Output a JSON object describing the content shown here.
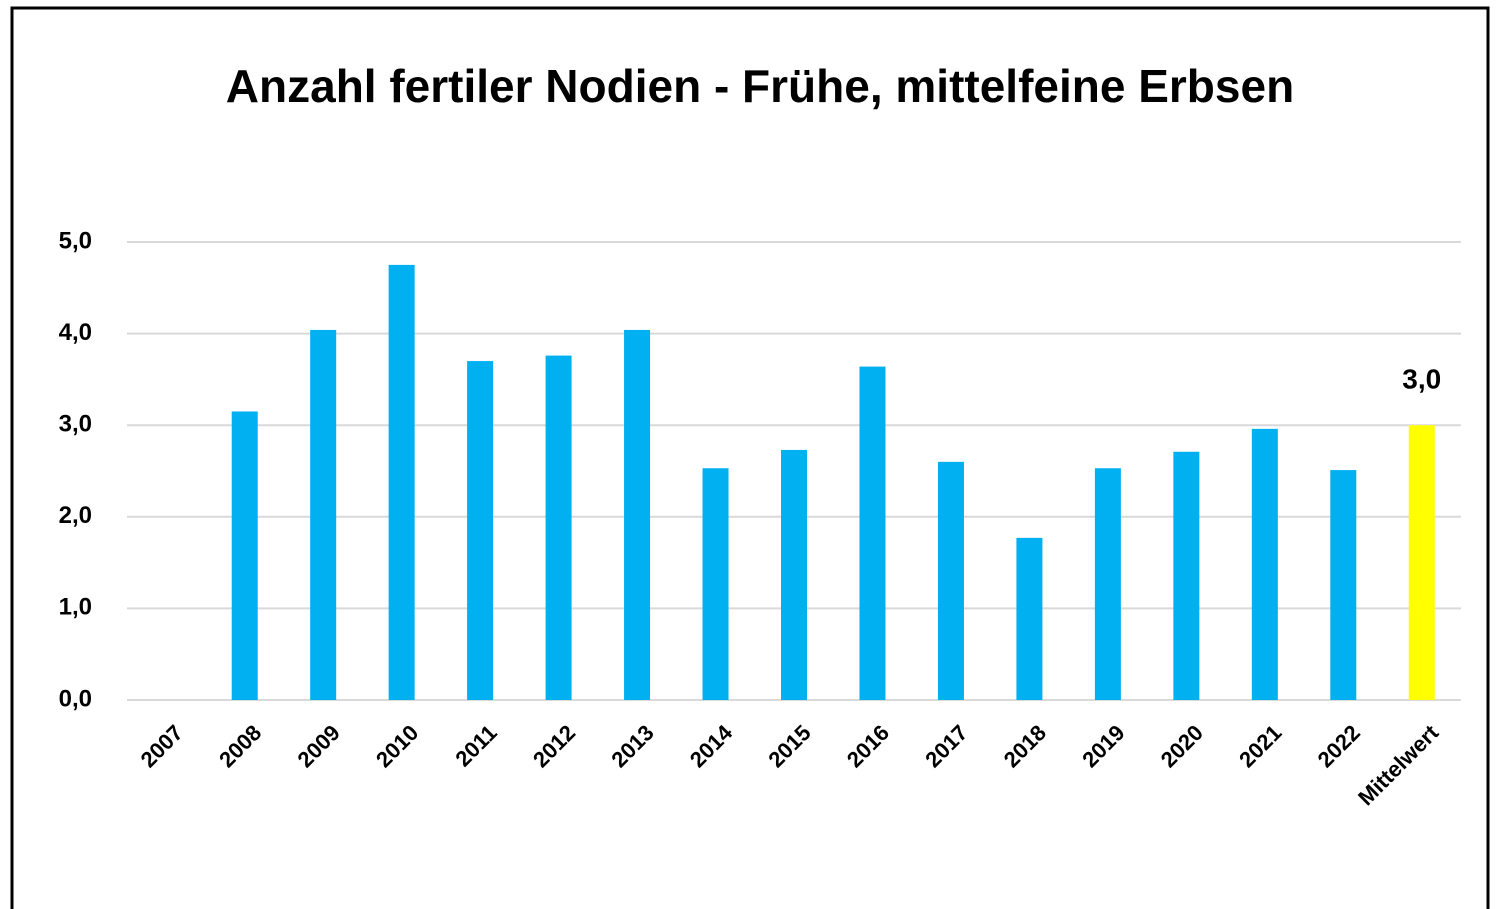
{
  "chart_data": {
    "type": "bar",
    "title": "Anzahl fertiler Nodien - Frühe, mittelfeine Erbsen",
    "categories": [
      "2007",
      "2008",
      "2009",
      "2010",
      "2011",
      "2012",
      "2013",
      "2014",
      "2015",
      "2016",
      "2017",
      "2018",
      "2019",
      "2020",
      "2021",
      "2022",
      "Mittelwert"
    ],
    "values": [
      null,
      3.15,
      4.04,
      4.75,
      3.7,
      3.76,
      4.04,
      2.53,
      2.73,
      3.64,
      2.6,
      1.77,
      2.53,
      2.71,
      2.96,
      2.51,
      3.0
    ],
    "value_labels": [
      null,
      null,
      null,
      null,
      null,
      null,
      null,
      null,
      null,
      null,
      null,
      null,
      null,
      null,
      null,
      null,
      "3,0"
    ],
    "colors": [
      "#00b0f0",
      "#00b0f0",
      "#00b0f0",
      "#00b0f0",
      "#00b0f0",
      "#00b0f0",
      "#00b0f0",
      "#00b0f0",
      "#00b0f0",
      "#00b0f0",
      "#00b0f0",
      "#00b0f0",
      "#00b0f0",
      "#00b0f0",
      "#00b0f0",
      "#00b0f0",
      "#ffff00"
    ],
    "ylim": [
      0,
      5
    ],
    "yticks": [
      {
        "value": 0,
        "label": "0,0"
      },
      {
        "value": 1,
        "label": "1,0"
      },
      {
        "value": 2,
        "label": "2,0"
      },
      {
        "value": 3,
        "label": "3,0"
      },
      {
        "value": 4,
        "label": "4,0"
      },
      {
        "value": 5,
        "label": "5,0"
      }
    ],
    "grid": true
  }
}
